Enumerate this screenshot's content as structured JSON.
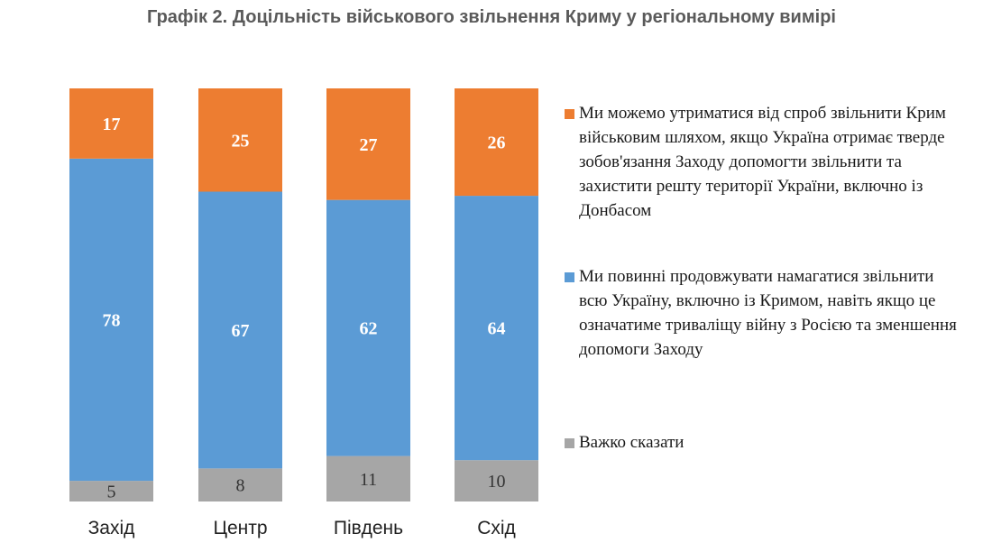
{
  "title": "Графік 2. Доцільність військового звільнення Криму у регіональному вимірі",
  "chart_data": {
    "type": "bar",
    "stacked": true,
    "categories": [
      "Захід",
      "Центр",
      "Південь",
      "Схід"
    ],
    "series": [
      {
        "name": "Важко сказати",
        "color": "#a6a6a6",
        "values": [
          5,
          8,
          11,
          10
        ]
      },
      {
        "name": "Ми повинні продовжувати намагатися звільнити всю Україну, включно із Кримом, навіть якщо це означатиме триваліщу війну з Росією та зменшення допомоги Заходу",
        "color": "#5b9bd5",
        "values": [
          78,
          67,
          62,
          64
        ]
      },
      {
        "name": "Ми можемо утриматися від спроб звільнити Крим військовим шляхом, якщо Україна отримає тверде зобов'язання Заходу допомогти звільнити та захистити решту території України, включно із Донбасом",
        "color": "#ed7d31",
        "values": [
          17,
          25,
          27,
          26
        ]
      }
    ],
    "ylim": [
      0,
      100
    ],
    "grid": false,
    "legend_position": "right"
  }
}
